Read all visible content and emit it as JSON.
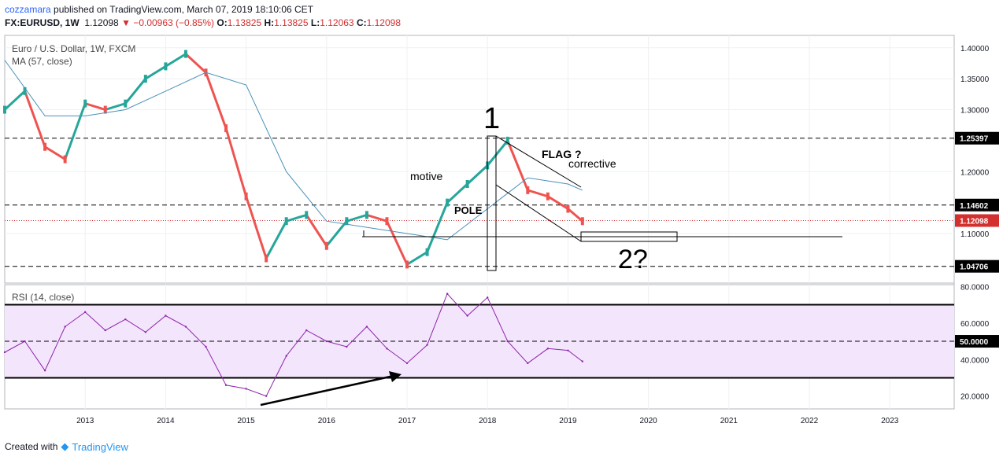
{
  "header": {
    "publisher": "cozzamara",
    "published_text": "published on TradingView.com, March 07, 2019 18:10:06 CET",
    "symbol": "FX:EURUSD, 1W",
    "last": "1.12098",
    "change": "−0.00963 (−0.85%)",
    "o_label": "O:",
    "o_value": "1.13825",
    "h_label": "H:",
    "h_value": "1.13825",
    "l_label": "L:",
    "l_value": "1.12063",
    "c_label": "C:",
    "c_value": "1.12098"
  },
  "footer": {
    "created_with": "Created with",
    "brand": "TradingView"
  },
  "colors": {
    "up": "#26a69a",
    "down": "#ef5350",
    "ma": "#4a90b8",
    "rsi": "#8e24aa",
    "rsi_band": "#f3e5fc",
    "price_line": "#d32f2f"
  },
  "chart_data": [
    {
      "type": "line",
      "title": "Euro / U.S. Dollar, 1W, FXCM",
      "indicator": "MA (57, close)",
      "x_ticks": [
        "2013",
        "2014",
        "2015",
        "2016",
        "2017",
        "2018",
        "2019",
        "2020",
        "2021",
        "2022",
        "2023"
      ],
      "y_ticks": [
        "1.40000",
        "1.35000",
        "1.30000",
        "1.20000",
        "1.10000"
      ],
      "ylim": [
        1.02,
        1.42
      ],
      "level_labels": [
        "1.25397",
        "1.14602",
        "1.12098",
        "1.04706"
      ],
      "levels": [
        1.25397,
        1.14602,
        1.04706
      ],
      "last_price": 1.12098,
      "series": [
        {
          "name": "Euro / U.S. Dollar",
          "x": [
            2012.0,
            2012.25,
            2012.5,
            2012.75,
            2013.0,
            2013.25,
            2013.5,
            2013.75,
            2014.0,
            2014.25,
            2014.5,
            2014.75,
            2015.0,
            2015.25,
            2015.5,
            2015.75,
            2016.0,
            2016.25,
            2016.5,
            2016.75,
            2017.0,
            2017.25,
            2017.5,
            2017.75,
            2018.0,
            2018.25,
            2018.5,
            2018.75,
            2019.0,
            2019.18
          ],
          "y": [
            1.3,
            1.33,
            1.24,
            1.22,
            1.31,
            1.3,
            1.31,
            1.35,
            1.37,
            1.39,
            1.36,
            1.27,
            1.16,
            1.06,
            1.12,
            1.13,
            1.08,
            1.12,
            1.13,
            1.12,
            1.05,
            1.07,
            1.15,
            1.18,
            1.21,
            1.25,
            1.17,
            1.16,
            1.14,
            1.12
          ]
        },
        {
          "name": "MA (57, close)",
          "x": [
            2012.0,
            2012.5,
            2013.0,
            2013.5,
            2014.0,
            2014.5,
            2015.0,
            2015.5,
            2016.0,
            2016.5,
            2017.0,
            2017.5,
            2018.0,
            2018.5,
            2019.0,
            2019.18
          ],
          "y": [
            1.38,
            1.29,
            1.29,
            1.3,
            1.33,
            1.36,
            1.34,
            1.2,
            1.12,
            1.11,
            1.1,
            1.09,
            1.14,
            1.19,
            1.18,
            1.17
          ]
        }
      ],
      "annotations": [
        "1",
        "FLAG ?",
        "corrective",
        "motive",
        "POLE",
        "2?"
      ]
    },
    {
      "type": "line",
      "title": "RSI (14, close)",
      "y_ticks": [
        "80.0000",
        "60.0000",
        "40.0000",
        "20.0000"
      ],
      "ylim": [
        13,
        81
      ],
      "bands": [
        30,
        70
      ],
      "midline": 50,
      "mid_label": "50.0000",
      "series": [
        {
          "name": "RSI (14, close)",
          "x": [
            2012.0,
            2012.25,
            2012.5,
            2012.75,
            2013.0,
            2013.25,
            2013.5,
            2013.75,
            2014.0,
            2014.25,
            2014.5,
            2014.75,
            2015.0,
            2015.25,
            2015.5,
            2015.75,
            2016.0,
            2016.25,
            2016.5,
            2016.75,
            2017.0,
            2017.25,
            2017.5,
            2017.75,
            2018.0,
            2018.25,
            2018.5,
            2018.75,
            2019.0,
            2019.18
          ],
          "y": [
            44,
            50,
            34,
            58,
            66,
            56,
            62,
            55,
            64,
            58,
            47,
            26,
            24,
            20,
            42,
            56,
            50,
            47,
            58,
            46,
            38,
            48,
            76,
            64,
            74,
            50,
            38,
            46,
            45,
            39
          ]
        }
      ],
      "annotations": [
        "arrow: 2015.15, 17 → 2016.9, 33"
      ]
    }
  ]
}
